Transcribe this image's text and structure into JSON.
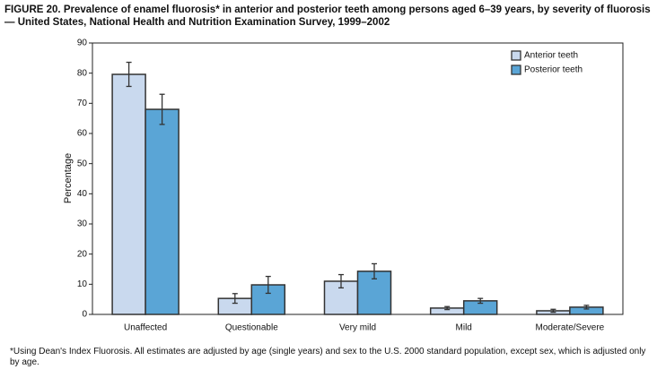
{
  "chart_data": {
    "type": "bar",
    "title": "FIGURE 20. Prevalence of enamel fluorosis* in anterior and posterior teeth among persons aged 6–39 years, by severity of fluorosis — United States, National Health and Nutrition Examination Survey, 1999–2002",
    "ylabel": "Percentage",
    "categories": [
      "Unaffected",
      "Questionable",
      "Very mild",
      "Mild",
      "Moderate/Severe"
    ],
    "series": [
      {
        "name": "Anterior teeth",
        "color": "#c9d9ee",
        "values": [
          79.6,
          5.3,
          11.0,
          2.1,
          1.2
        ],
        "errors": [
          4.0,
          1.6,
          2.2,
          0.5,
          0.5
        ]
      },
      {
        "name": "Posterior teeth",
        "color": "#5aa5d6",
        "values": [
          68.0,
          9.8,
          14.3,
          4.5,
          2.4
        ],
        "errors": [
          5.0,
          2.8,
          2.5,
          0.8,
          0.6
        ]
      }
    ],
    "ylim": [
      0,
      90
    ],
    "yticks": [
      0,
      10,
      20,
      30,
      40,
      50,
      60,
      70,
      80,
      90
    ],
    "legend": "upper right",
    "footnote": "*Using Dean's Index Fluorosis. All estimates are adjusted by age (single years) and sex to the U.S. 2000 standard population, except sex, which is adjusted only by age."
  }
}
